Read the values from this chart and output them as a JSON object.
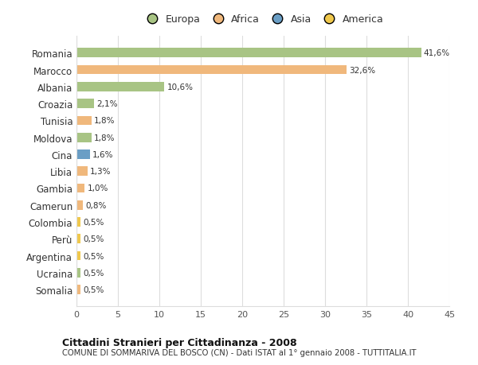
{
  "countries": [
    "Romania",
    "Marocco",
    "Albania",
    "Croazia",
    "Tunisia",
    "Moldova",
    "Cina",
    "Libia",
    "Gambia",
    "Camerun",
    "Colombia",
    "Perù",
    "Argentina",
    "Ucraina",
    "Somalia"
  ],
  "values": [
    41.6,
    32.6,
    10.6,
    2.1,
    1.8,
    1.8,
    1.6,
    1.3,
    1.0,
    0.8,
    0.5,
    0.5,
    0.5,
    0.5,
    0.5
  ],
  "labels": [
    "41,6%",
    "32,6%",
    "10,6%",
    "2,1%",
    "1,8%",
    "1,8%",
    "1,6%",
    "1,3%",
    "1,0%",
    "0,8%",
    "0,5%",
    "0,5%",
    "0,5%",
    "0,5%",
    "0,5%"
  ],
  "colors": [
    "#a8c484",
    "#f0b87c",
    "#a8c484",
    "#a8c484",
    "#f0b87c",
    "#a8c484",
    "#6a9ec5",
    "#f0b87c",
    "#f0b87c",
    "#f0b87c",
    "#f0c84c",
    "#f0c84c",
    "#f0c84c",
    "#a8c484",
    "#f0b87c"
  ],
  "legend_labels": [
    "Europa",
    "Africa",
    "Asia",
    "America"
  ],
  "legend_colors": [
    "#a8c484",
    "#f0b87c",
    "#6a9ec5",
    "#f0c84c"
  ],
  "title": "Cittadini Stranieri per Cittadinanza - 2008",
  "subtitle": "COMUNE DI SOMMARIVA DEL BOSCO (CN) - Dati ISTAT al 1° gennaio 2008 - TUTTITALIA.IT",
  "xlim": [
    0,
    45
  ],
  "xticks": [
    0,
    5,
    10,
    15,
    20,
    25,
    30,
    35,
    40,
    45
  ],
  "bg_color": "#ffffff",
  "plot_bg_color": "#ffffff",
  "grid_color": "#dddddd",
  "bar_height": 0.55
}
